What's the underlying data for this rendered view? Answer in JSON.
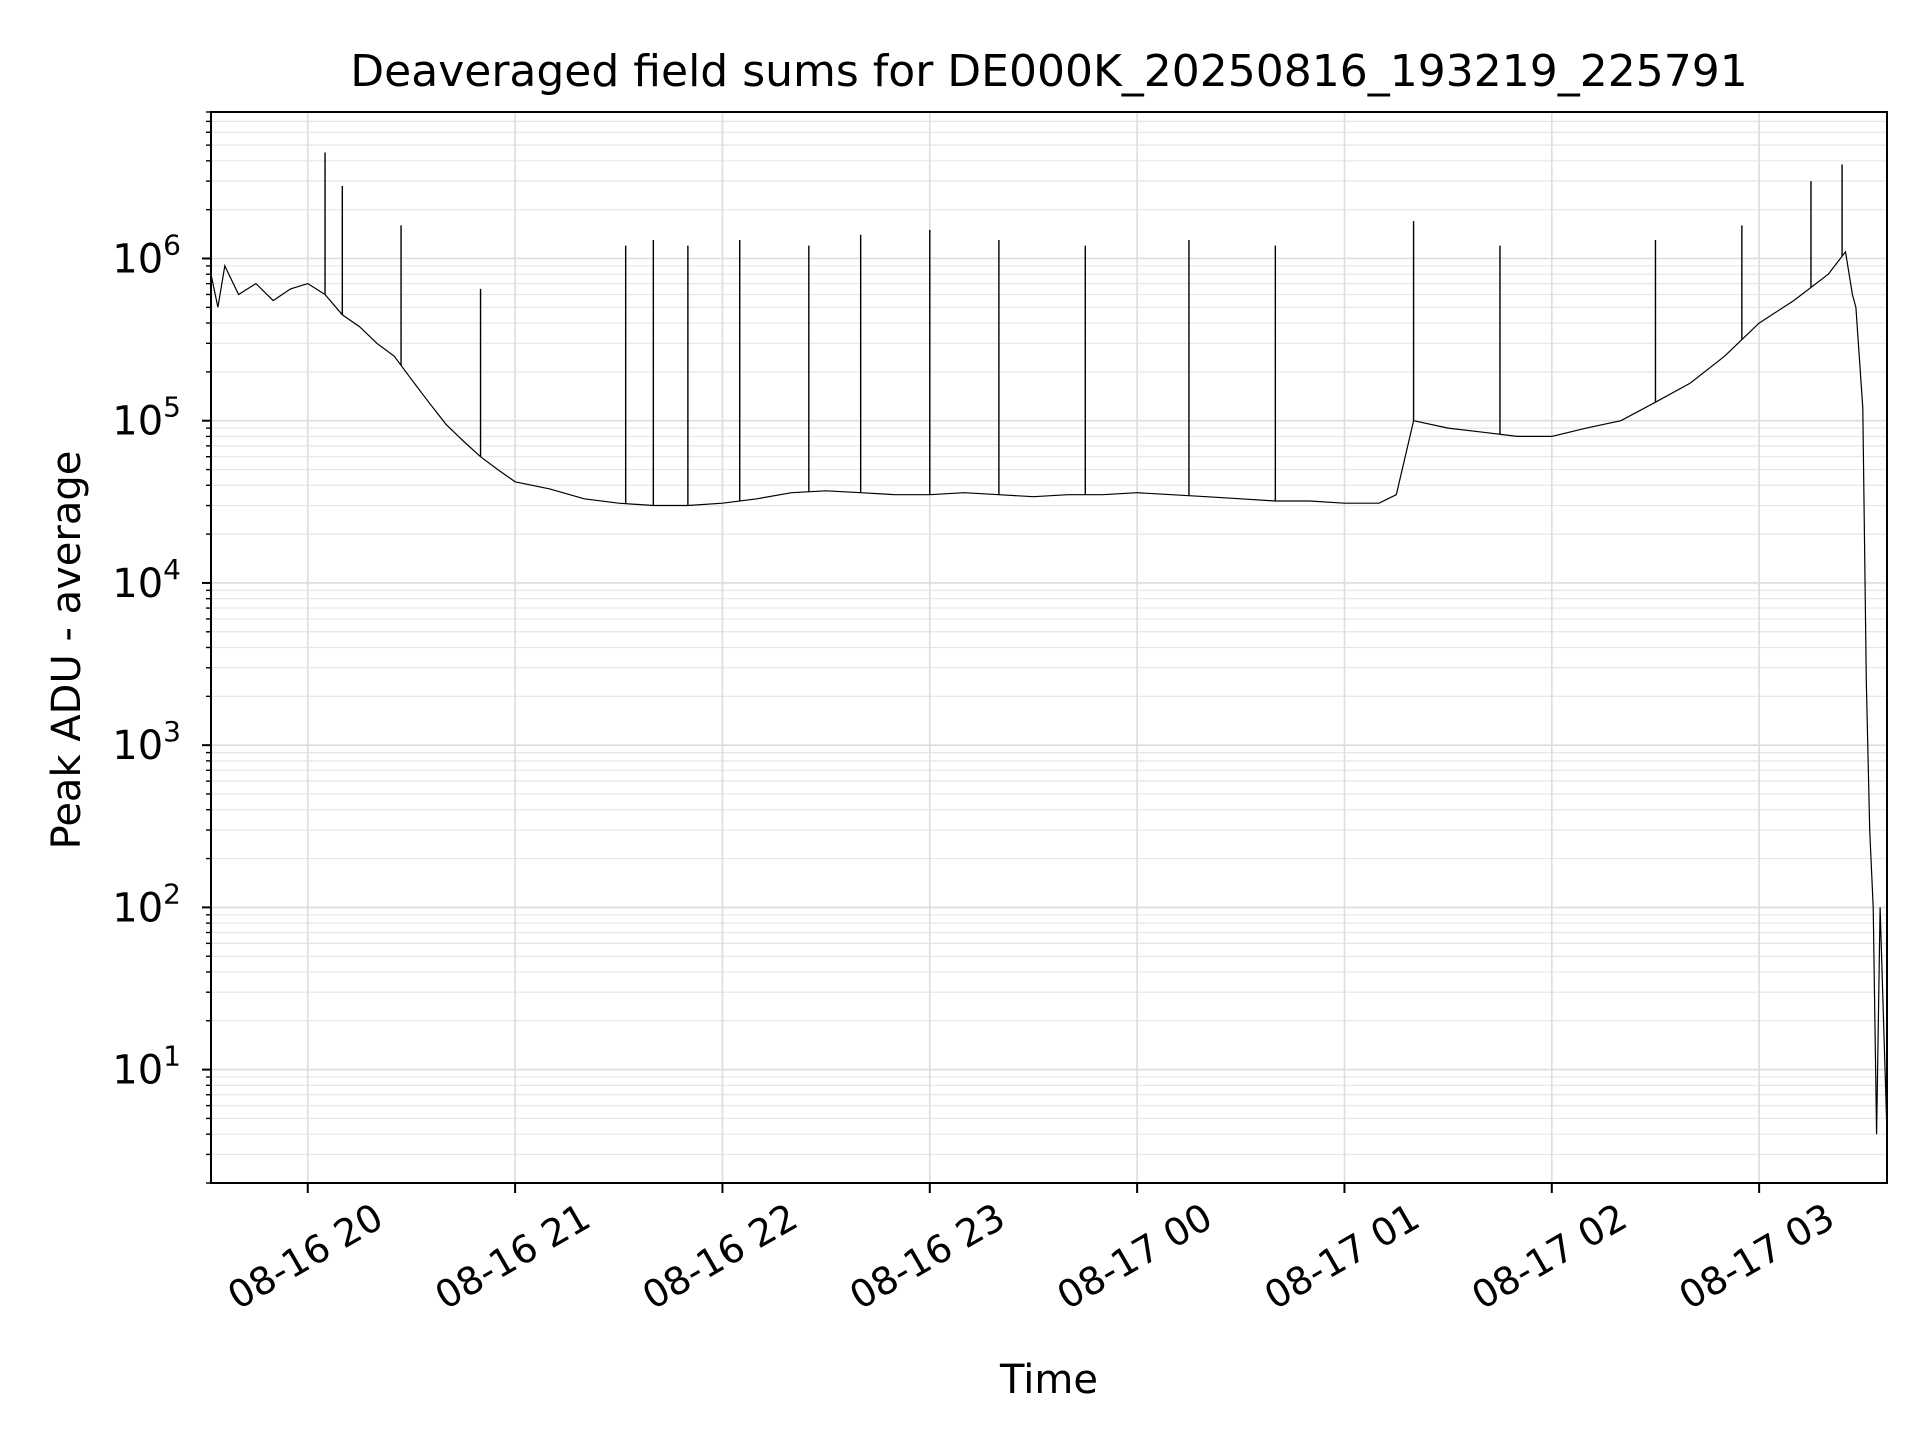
{
  "chart_data": {
    "type": "line",
    "title": "Deaveraged field sums for DE000K_20250816_193219_225791",
    "xlabel": "Time",
    "ylabel": "Peak ADU - average",
    "yscale": "log",
    "ylim": [
      2,
      8000000
    ],
    "xlim": [
      "2025-08-16 19:32",
      "2025-08-17 03:37"
    ],
    "x_ticks": [
      "08-16 20",
      "08-16 21",
      "08-16 22",
      "08-16 23",
      "08-17 00",
      "08-17 01",
      "08-17 02",
      "08-17 03"
    ],
    "x_tick_values": [
      "2025-08-16 20:00",
      "2025-08-16 21:00",
      "2025-08-16 22:00",
      "2025-08-16 23:00",
      "2025-08-17 00:00",
      "2025-08-17 01:00",
      "2025-08-17 02:00",
      "2025-08-17 03:00"
    ],
    "y_ticks": [
      {
        "base": "10",
        "exp": "1",
        "value": 10
      },
      {
        "base": "10",
        "exp": "2",
        "value": 100
      },
      {
        "base": "10",
        "exp": "3",
        "value": 1000
      },
      {
        "base": "10",
        "exp": "4",
        "value": 10000
      },
      {
        "base": "10",
        "exp": "5",
        "value": 100000
      },
      {
        "base": "10",
        "exp": "6",
        "value": 1000000
      }
    ],
    "grid": true,
    "legend": "none",
    "line_color": "#000000",
    "series": [
      {
        "x": [
          "2025-08-16 19:32",
          "2025-08-16 19:34",
          "2025-08-16 19:36",
          "2025-08-16 19:40",
          "2025-08-16 19:45",
          "2025-08-16 19:50",
          "2025-08-16 19:55",
          "2025-08-16 20:00",
          "2025-08-16 20:05",
          "2025-08-16 20:10",
          "2025-08-16 20:15",
          "2025-08-16 20:20",
          "2025-08-16 20:25",
          "2025-08-16 20:30",
          "2025-08-16 20:35",
          "2025-08-16 20:40",
          "2025-08-16 20:45",
          "2025-08-16 20:50",
          "2025-08-16 20:55",
          "2025-08-16 21:00",
          "2025-08-16 21:10",
          "2025-08-16 21:20",
          "2025-08-16 21:30",
          "2025-08-16 21:40",
          "2025-08-16 21:50",
          "2025-08-16 22:00",
          "2025-08-16 22:10",
          "2025-08-16 22:20",
          "2025-08-16 22:30",
          "2025-08-16 22:40",
          "2025-08-16 22:50",
          "2025-08-16 23:00",
          "2025-08-16 23:10",
          "2025-08-16 23:20",
          "2025-08-16 23:30",
          "2025-08-16 23:40",
          "2025-08-16 23:50",
          "2025-08-17 00:00",
          "2025-08-17 00:10",
          "2025-08-17 00:20",
          "2025-08-17 00:30",
          "2025-08-17 00:40",
          "2025-08-17 00:50",
          "2025-08-17 01:00",
          "2025-08-17 01:10",
          "2025-08-17 01:15",
          "2025-08-17 01:20",
          "2025-08-17 01:30",
          "2025-08-17 01:40",
          "2025-08-17 01:50",
          "2025-08-17 02:00",
          "2025-08-17 02:10",
          "2025-08-17 02:20",
          "2025-08-17 02:30",
          "2025-08-17 02:40",
          "2025-08-17 02:50",
          "2025-08-17 03:00",
          "2025-08-17 03:10",
          "2025-08-17 03:20",
          "2025-08-17 03:25",
          "2025-08-17 03:27",
          "2025-08-17 03:28",
          "2025-08-17 03:30",
          "2025-08-17 03:31",
          "2025-08-17 03:32",
          "2025-08-17 03:33",
          "2025-08-17 03:34",
          "2025-08-17 03:35",
          "2025-08-17 03:37"
        ],
        "values": [
          800000,
          500000,
          900000,
          600000,
          700000,
          550000,
          650000,
          700000,
          600000,
          450000,
          380000,
          300000,
          250000,
          180000,
          130000,
          95000,
          75000,
          60000,
          50000,
          42000,
          38000,
          33000,
          31000,
          30000,
          30000,
          31000,
          33000,
          36000,
          37000,
          36000,
          35000,
          35000,
          36000,
          35000,
          34000,
          35000,
          35000,
          36000,
          35000,
          34000,
          33000,
          32000,
          32000,
          31000,
          31000,
          35000,
          100000,
          90000,
          85000,
          80000,
          80000,
          90000,
          100000,
          130000,
          170000,
          250000,
          400000,
          550000,
          800000,
          1100000,
          600000,
          500000,
          120000,
          2500,
          300,
          100,
          4,
          100,
          4
        ]
      }
    ],
    "spikes": [
      {
        "x": "2025-08-16 20:05",
        "y": 4500000
      },
      {
        "x": "2025-08-16 20:10",
        "y": 2800000
      },
      {
        "x": "2025-08-16 20:27",
        "y": 1600000
      },
      {
        "x": "2025-08-16 20:50",
        "y": 650000
      },
      {
        "x": "2025-08-16 21:32",
        "y": 1200000
      },
      {
        "x": "2025-08-16 21:40",
        "y": 1300000
      },
      {
        "x": "2025-08-16 21:50",
        "y": 1200000
      },
      {
        "x": "2025-08-16 22:05",
        "y": 1300000
      },
      {
        "x": "2025-08-16 22:25",
        "y": 1200000
      },
      {
        "x": "2025-08-16 22:40",
        "y": 1400000
      },
      {
        "x": "2025-08-16 23:00",
        "y": 1500000
      },
      {
        "x": "2025-08-16 23:20",
        "y": 1300000
      },
      {
        "x": "2025-08-16 23:45",
        "y": 1200000
      },
      {
        "x": "2025-08-17 00:15",
        "y": 1300000
      },
      {
        "x": "2025-08-17 00:40",
        "y": 1200000
      },
      {
        "x": "2025-08-17 01:20",
        "y": 1700000
      },
      {
        "x": "2025-08-17 01:45",
        "y": 1200000
      },
      {
        "x": "2025-08-17 02:30",
        "y": 1300000
      },
      {
        "x": "2025-08-17 02:55",
        "y": 1600000
      },
      {
        "x": "2025-08-17 03:15",
        "y": 3000000
      },
      {
        "x": "2025-08-17 03:24",
        "y": 3800000
      }
    ]
  }
}
